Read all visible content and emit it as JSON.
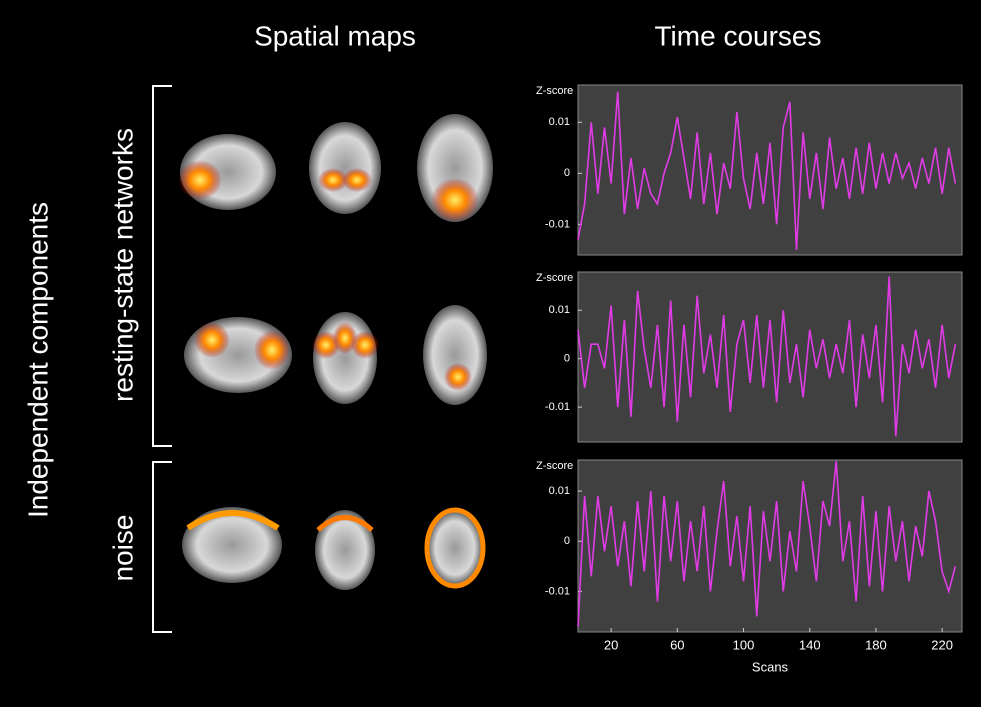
{
  "headers": {
    "spatial": "Spatial maps",
    "time": "Time courses"
  },
  "side_label": "Independent components",
  "groups": {
    "rsn": "resting-state networks",
    "noise": "noise"
  },
  "chart_data": [
    {
      "type": "line",
      "y_label": "Z-score",
      "xlim": [
        0,
        232
      ],
      "ylim": [
        -0.016,
        0.0173
      ],
      "yticks": [
        0.01,
        0,
        -0.01
      ],
      "x": [
        0,
        4,
        8,
        12,
        16,
        20,
        24,
        28,
        32,
        36,
        40,
        44,
        48,
        52,
        56,
        60,
        64,
        68,
        72,
        76,
        80,
        84,
        88,
        92,
        96,
        100,
        104,
        108,
        112,
        116,
        120,
        124,
        128,
        132,
        136,
        140,
        144,
        148,
        152,
        156,
        160,
        164,
        168,
        172,
        176,
        180,
        184,
        188,
        192,
        196,
        200,
        204,
        208,
        212,
        216,
        220,
        224,
        228
      ],
      "series": [
        {
          "color": "#e03ce6",
          "values": [
            -0.013,
            -0.006,
            0.01,
            -0.004,
            0.009,
            -0.002,
            0.016,
            -0.008,
            0.003,
            -0.007,
            0.001,
            -0.004,
            -0.006,
            0.0,
            0.004,
            0.011,
            0.003,
            -0.005,
            0.008,
            -0.006,
            0.004,
            -0.008,
            0.002,
            -0.003,
            0.012,
            -0.001,
            -0.007,
            0.004,
            -0.006,
            0.006,
            -0.01,
            0.009,
            0.014,
            -0.015,
            0.008,
            -0.005,
            0.004,
            -0.007,
            0.007,
            -0.003,
            0.003,
            -0.005,
            0.005,
            -0.004,
            0.006,
            -0.003,
            0.004,
            -0.002,
            0.004,
            -0.001,
            0.002,
            -0.003,
            0.003,
            -0.002,
            0.005,
            -0.004,
            0.005,
            -0.002
          ]
        }
      ]
    },
    {
      "type": "line",
      "y_label": "Z-score",
      "xlim": [
        0,
        232
      ],
      "ylim": [
        -0.0172,
        0.0179
      ],
      "yticks": [
        0.01,
        0,
        -0.01
      ],
      "x": [
        0,
        4,
        8,
        12,
        16,
        20,
        24,
        28,
        32,
        36,
        40,
        44,
        48,
        52,
        56,
        60,
        64,
        68,
        72,
        76,
        80,
        84,
        88,
        92,
        96,
        100,
        104,
        108,
        112,
        116,
        120,
        124,
        128,
        132,
        136,
        140,
        144,
        148,
        152,
        156,
        160,
        164,
        168,
        172,
        176,
        180,
        184,
        188,
        192,
        196,
        200,
        204,
        208,
        212,
        216,
        220,
        224,
        228
      ],
      "series": [
        {
          "color": "#e03ce6",
          "values": [
            0.006,
            -0.006,
            0.003,
            0.003,
            -0.002,
            0.011,
            -0.01,
            0.008,
            -0.012,
            0.014,
            0.002,
            -0.006,
            0.007,
            -0.01,
            0.012,
            -0.013,
            0.007,
            -0.008,
            0.013,
            -0.003,
            0.005,
            -0.006,
            0.009,
            -0.011,
            0.003,
            0.008,
            -0.005,
            0.009,
            -0.006,
            0.008,
            -0.009,
            0.01,
            -0.005,
            0.003,
            -0.008,
            0.006,
            -0.002,
            0.004,
            -0.004,
            0.003,
            -0.003,
            0.008,
            -0.01,
            0.005,
            -0.004,
            0.007,
            -0.009,
            0.017,
            -0.016,
            0.003,
            -0.003,
            0.006,
            -0.002,
            0.004,
            -0.006,
            0.007,
            -0.004,
            0.003
          ]
        }
      ]
    },
    {
      "type": "line",
      "y_label": "Z-score",
      "x_label": "Scans",
      "xlim": [
        0,
        232
      ],
      "ylim": [
        -0.0181,
        0.0162
      ],
      "yticks": [
        0.01,
        0,
        -0.01
      ],
      "xticks": [
        20,
        60,
        100,
        140,
        180,
        220
      ],
      "x": [
        0,
        4,
        8,
        12,
        16,
        20,
        24,
        28,
        32,
        36,
        40,
        44,
        48,
        52,
        56,
        60,
        64,
        68,
        72,
        76,
        80,
        84,
        88,
        92,
        96,
        100,
        104,
        108,
        112,
        116,
        120,
        124,
        128,
        132,
        136,
        140,
        144,
        148,
        152,
        156,
        160,
        164,
        168,
        172,
        176,
        180,
        184,
        188,
        192,
        196,
        200,
        204,
        208,
        212,
        216,
        220,
        224,
        228
      ],
      "series": [
        {
          "color": "#e03ce6",
          "values": [
            -0.017,
            0.009,
            -0.007,
            0.009,
            -0.002,
            0.007,
            -0.005,
            0.004,
            -0.009,
            0.008,
            -0.006,
            0.01,
            -0.012,
            0.009,
            -0.004,
            0.008,
            -0.008,
            0.004,
            -0.006,
            0.007,
            -0.01,
            0.002,
            0.012,
            -0.005,
            0.005,
            -0.008,
            0.007,
            -0.015,
            0.006,
            -0.004,
            0.008,
            -0.01,
            0.002,
            -0.006,
            0.012,
            0.003,
            -0.008,
            0.008,
            0.003,
            0.016,
            -0.004,
            0.004,
            -0.012,
            0.009,
            -0.009,
            0.006,
            -0.01,
            0.007,
            -0.004,
            0.004,
            -0.008,
            0.003,
            -0.003,
            0.01,
            0.004,
            -0.006,
            -0.01,
            -0.005
          ]
        }
      ]
    }
  ]
}
